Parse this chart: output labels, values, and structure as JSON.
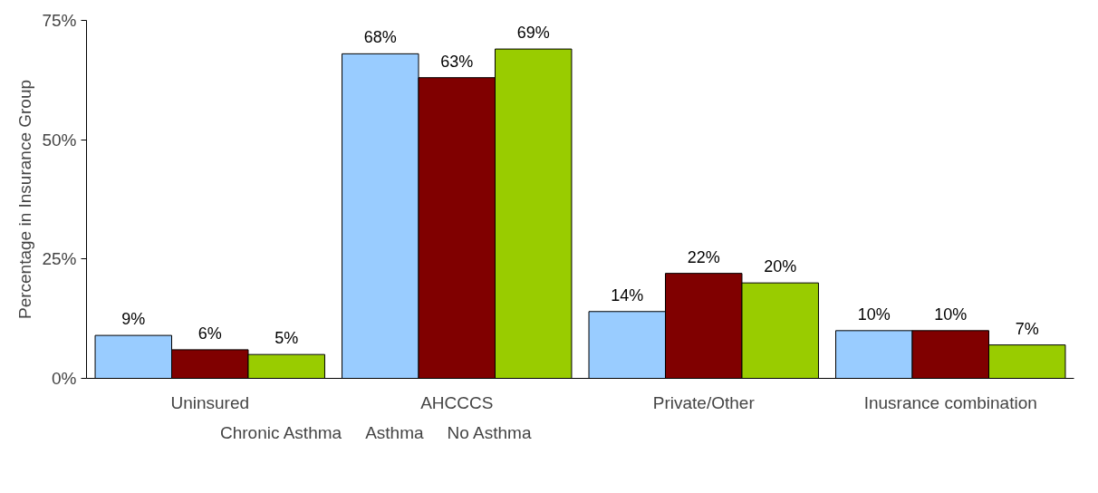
{
  "chart_data": {
    "type": "bar",
    "ylabel": "Percentage in Insurance Group",
    "categories": [
      "Uninsured",
      "AHCCCS",
      "Private/Other",
      "Inusrance combination"
    ],
    "series": [
      {
        "name": "Chronic Asthma",
        "color": "#99ccff",
        "values": [
          9,
          68,
          14,
          10
        ],
        "value_labels": [
          "9%",
          "68%",
          "14%",
          "10%"
        ]
      },
      {
        "name": "Asthma",
        "color": "#800000",
        "values": [
          6,
          63,
          22,
          10
        ],
        "value_labels": [
          "6%",
          "63%",
          "22%",
          "10%"
        ]
      },
      {
        "name": "No Asthma",
        "color": "#99cc00",
        "values": [
          5,
          69,
          20,
          7
        ],
        "value_labels": [
          "5%",
          "69%",
          "20%",
          "7%"
        ]
      }
    ],
    "ylim": [
      0,
      75
    ],
    "yticks": [
      {
        "value": 0,
        "label": "0%"
      },
      {
        "value": 25,
        "label": "25%"
      },
      {
        "value": 50,
        "label": "50%"
      },
      {
        "value": 75,
        "label": "75%"
      }
    ],
    "grid": false,
    "legend": "bottom"
  }
}
